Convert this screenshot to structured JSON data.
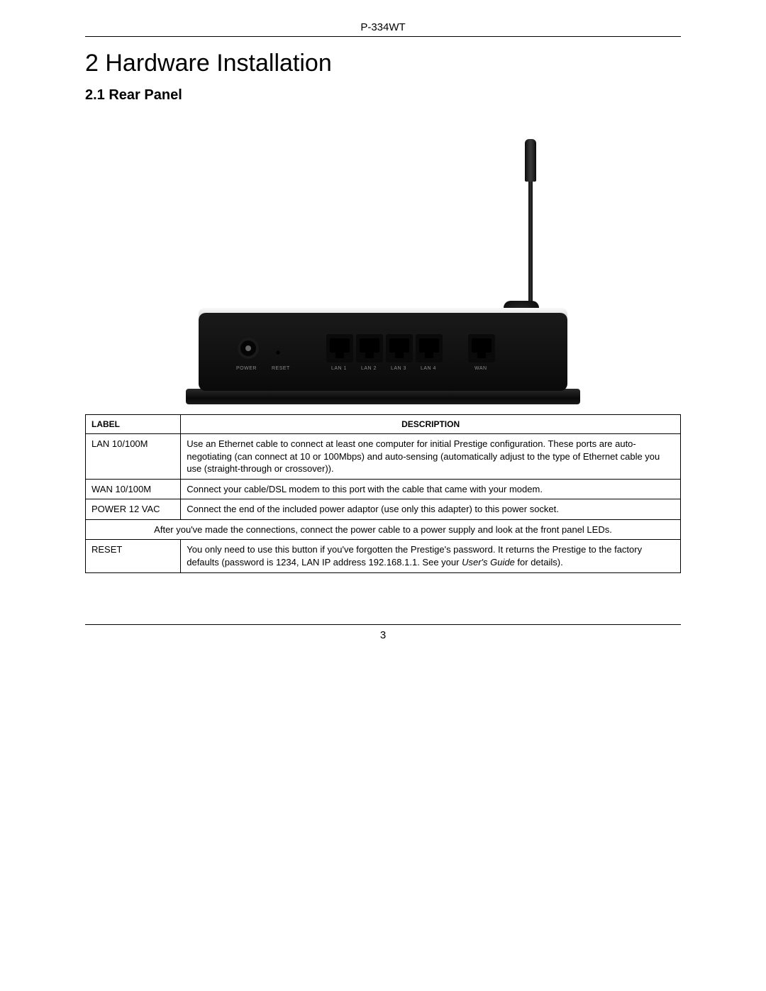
{
  "doc": {
    "model": "P-334WT",
    "chapter_title": "2 Hardware Installation",
    "section_title": "2.1 Rear Panel",
    "page_number": "3"
  },
  "figure": {
    "port_labels": {
      "power": "POWER",
      "reset": "RESET",
      "lan1": "LAN 1",
      "lan2": "LAN 2",
      "lan3": "LAN 3",
      "lan4": "LAN 4",
      "wan": "WAN"
    }
  },
  "table": {
    "headers": {
      "label": "LABEL",
      "description": "DESCRIPTION"
    },
    "rows": [
      {
        "label": "LAN 10/100M",
        "description": "Use an Ethernet cable to connect at least one computer for initial Prestige configuration. These ports are auto-negotiating (can connect at 10 or 100Mbps) and auto-sensing (automatically adjust to the type of Ethernet cable you use (straight-through or crossover))."
      },
      {
        "label": "WAN 10/100M",
        "description": "Connect your cable/DSL modem to this port with the cable that came with your modem."
      },
      {
        "label": "POWER 12 VAC",
        "description": "Connect the end of the included power adaptor (use only this adapter) to this power socket."
      }
    ],
    "span_row": "After you've made the connections, connect the power cable to a power supply and look at the front panel LEDs.",
    "reset_row": {
      "label": "RESET",
      "desc_before": "You only need to use this button if you've forgotten the Prestige's password. It returns the Prestige to the factory defaults (password is 1234, LAN IP address 192.168.1.1. See your ",
      "desc_italic": "User's Guide",
      "desc_after": " for details)."
    }
  }
}
